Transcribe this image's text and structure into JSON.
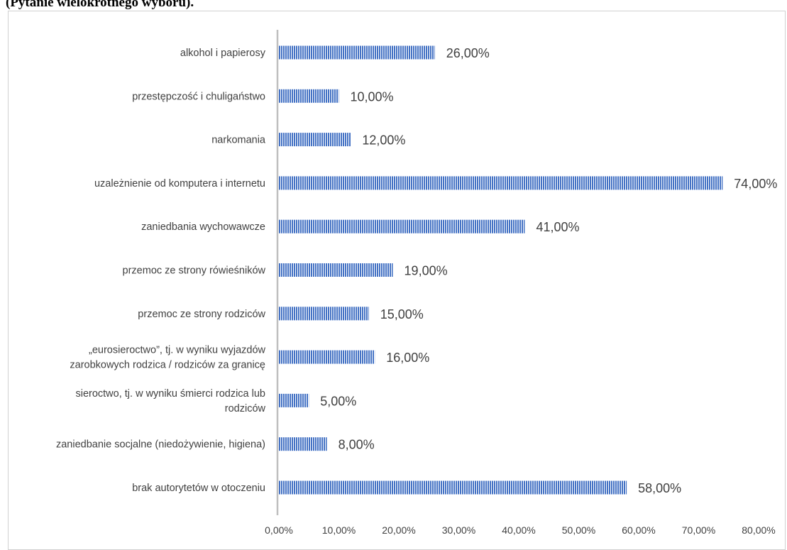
{
  "page": {
    "caption": "(Pytanie wielokrotnego wyboru)."
  },
  "chart_data": {
    "type": "bar",
    "orientation": "horizontal",
    "title": "",
    "xlabel": "",
    "ylabel": "",
    "categories": [
      "alkohol i papierosy",
      "przestępczość i chuligaństwo",
      "narkomania",
      "uzależnienie od komputera i internetu",
      "zaniedbania wychowawcze",
      "przemoc ze strony rówieśników",
      "przemoc ze strony rodziców",
      "„eurosieroctwo”, tj. w wyniku wyjazdów zarobkowych rodzica / rodziców za granicę",
      "sieroctwo, tj. w wyniku śmierci rodzica lub rodziców",
      "zaniedbanie socjalne (niedożywienie, higiena)",
      "brak autorytetów w otoczeniu"
    ],
    "category_lines": [
      [
        "alkohol i papierosy"
      ],
      [
        "przestępczość i chuligaństwo"
      ],
      [
        "narkomania"
      ],
      [
        "uzależnienie od komputera i internetu"
      ],
      [
        "zaniedbania wychowawcze"
      ],
      [
        "przemoc ze strony rówieśników"
      ],
      [
        "przemoc ze strony rodziców"
      ],
      [
        "„eurosieroctwo”, tj. w wyniku wyjazdów",
        "zarobkowych rodzica / rodziców za granicę"
      ],
      [
        "sieroctwo, tj. w wyniku śmierci rodzica lub",
        "rodziców"
      ],
      [
        "zaniedbanie socjalne (niedożywienie, higiena)"
      ],
      [
        "brak autorytetów w otoczeniu"
      ]
    ],
    "values": [
      26,
      10,
      12,
      74,
      41,
      19,
      15,
      16,
      5,
      8,
      58
    ],
    "value_labels": [
      "26,00%",
      "10,00%",
      "12,00%",
      "74,00%",
      "41,00%",
      "19,00%",
      "15,00%",
      "16,00%",
      "5,00%",
      "8,00%",
      "58,00%"
    ],
    "xlim": [
      0,
      80
    ],
    "x_ticks": [
      0,
      10,
      20,
      30,
      40,
      50,
      60,
      70,
      80
    ],
    "x_tick_labels": [
      "0,00%",
      "10,00%",
      "20,00%",
      "30,00%",
      "40,00%",
      "50,00%",
      "60,00%",
      "70,00%",
      "80,00%"
    ],
    "grid": false,
    "legend": "none",
    "bar_color": "#4472c4",
    "bar_pattern": "vertical-stripes"
  }
}
